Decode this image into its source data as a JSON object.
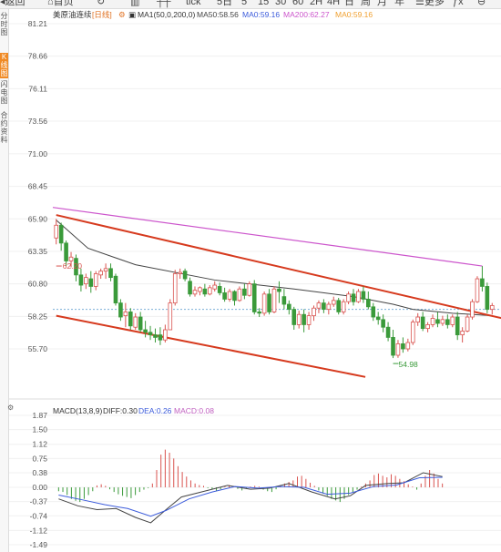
{
  "toolbar": {
    "items": [
      {
        "label": "返回",
        "icon": "back-arrow-icon"
      },
      {
        "label": "首页",
        "icon": "home-icon"
      },
      {
        "label": "",
        "icon": "refresh-icon"
      },
      {
        "label": "",
        "icon": "candlestick-icon"
      },
      {
        "label": "",
        "icon": "tick-bars-icon"
      },
      {
        "label": "tick"
      },
      {
        "label": "5日"
      },
      {
        "label": "5"
      },
      {
        "label": "15"
      },
      {
        "label": "30"
      },
      {
        "label": "60"
      },
      {
        "label": "2H"
      },
      {
        "label": "4H"
      },
      {
        "label": "日"
      },
      {
        "label": "周"
      },
      {
        "label": "月"
      },
      {
        "label": "年"
      },
      {
        "label": "更多",
        "icon": "menu-icon"
      },
      {
        "label": "",
        "icon": "function-icon"
      },
      {
        "label": "",
        "icon": "zoom-out-icon"
      }
    ]
  },
  "sidebar": {
    "items": [
      {
        "label": "分时图",
        "active": false
      },
      {
        "label": "K线图",
        "active": true
      },
      {
        "label": "闪电图",
        "active": false
      },
      {
        "label": "合约资料",
        "active": false
      }
    ]
  },
  "colors": {
    "up": "#d9534f",
    "down": "#3a9a3a",
    "ma1": "#333333",
    "ma50": "#444444",
    "ma200": "#cc55cc",
    "ma0": "#f0a030",
    "channel": "#d63a1e",
    "dif": "#444444",
    "dea": "#3b5bdb",
    "macd": "#c060c0",
    "price_guide": "#7aaed6"
  },
  "chart_data": [
    {
      "type": "candlestick",
      "title": "美原油连续",
      "period": "日线",
      "indicators": [
        {
          "name": "MA1(50,0,200,0)",
          "value": ""
        },
        {
          "name": "MA50",
          "value": "58.56"
        },
        {
          "name": "MA0",
          "value": "59.16"
        },
        {
          "name": "MA200",
          "value": "62.27"
        },
        {
          "name": "MA0",
          "value": "59.16"
        }
      ],
      "y_ticks": [
        "81.21",
        "78.66",
        "76.11",
        "73.56",
        "71.00",
        "68.45",
        "65.90",
        "63.35",
        "60.80",
        "58.25",
        "55.70"
      ],
      "ylim": [
        53.2,
        81.21
      ],
      "annotations": [
        {
          "text": "62.20",
          "value": 62.2
        },
        {
          "text": "54.98",
          "value": 54.98
        }
      ],
      "current_price": 58.8,
      "ma200": {
        "start": 66.8,
        "end": 62.2
      },
      "ma50": [
        [
          0,
          65.8
        ],
        [
          8,
          63.6
        ],
        [
          20,
          62.3
        ],
        [
          40,
          61.1
        ],
        [
          60,
          60.4
        ],
        [
          75,
          59.8
        ],
        [
          85,
          59.2
        ],
        [
          90,
          58.8
        ],
        [
          100,
          58.5
        ],
        [
          110,
          58.3
        ]
      ],
      "channel_upper": [
        [
          0,
          66.2
        ],
        [
          125,
          57.2
        ]
      ],
      "channel_lower": [
        [
          0,
          58.3
        ],
        [
          78,
          53.5
        ]
      ],
      "candles": [
        {
          "o": 64.4,
          "h": 65.9,
          "c": 65.4,
          "l": 63.9
        },
        {
          "o": 65.4,
          "h": 65.6,
          "c": 64.0,
          "l": 63.4
        },
        {
          "o": 64.0,
          "h": 64.2,
          "c": 62.6,
          "l": 62.2
        },
        {
          "o": 62.6,
          "h": 63.3,
          "c": 62.9,
          "l": 62.1
        },
        {
          "o": 62.8,
          "h": 63.1,
          "c": 61.5,
          "l": 61.0
        },
        {
          "o": 61.5,
          "h": 62.0,
          "c": 60.7,
          "l": 60.2
        },
        {
          "o": 60.8,
          "h": 61.6,
          "c": 61.3,
          "l": 60.4
        },
        {
          "o": 61.2,
          "h": 61.8,
          "c": 60.6,
          "l": 60.1
        },
        {
          "o": 60.6,
          "h": 61.8,
          "c": 61.6,
          "l": 60.3
        },
        {
          "o": 61.5,
          "h": 62.0,
          "c": 61.8,
          "l": 61.2
        },
        {
          "o": 61.8,
          "h": 62.4,
          "c": 62.0,
          "l": 61.2
        },
        {
          "o": 62.0,
          "h": 62.4,
          "c": 61.3,
          "l": 61.0
        },
        {
          "o": 61.4,
          "h": 61.6,
          "c": 59.3,
          "l": 59.1
        },
        {
          "o": 59.3,
          "h": 59.6,
          "c": 58.2,
          "l": 57.9
        },
        {
          "o": 58.3,
          "h": 59.3,
          "c": 58.6,
          "l": 57.4
        },
        {
          "o": 58.6,
          "h": 58.9,
          "c": 57.5,
          "l": 57.2
        },
        {
          "o": 57.4,
          "h": 58.5,
          "c": 58.2,
          "l": 57.2
        },
        {
          "o": 58.2,
          "h": 58.6,
          "c": 57.2,
          "l": 57.0
        },
        {
          "o": 57.2,
          "h": 57.9,
          "c": 57.0,
          "l": 56.6
        },
        {
          "o": 57.0,
          "h": 57.5,
          "c": 56.8,
          "l": 56.4
        },
        {
          "o": 56.8,
          "h": 57.3,
          "c": 56.6,
          "l": 56.2
        },
        {
          "o": 56.8,
          "h": 57.4,
          "c": 56.4,
          "l": 56.0
        },
        {
          "o": 56.4,
          "h": 57.6,
          "c": 57.2,
          "l": 56.2
        },
        {
          "o": 57.2,
          "h": 59.6,
          "c": 59.3,
          "l": 57.2
        },
        {
          "o": 59.3,
          "h": 61.9,
          "c": 61.6,
          "l": 59.1
        },
        {
          "o": 61.6,
          "h": 62.0,
          "c": 61.7,
          "l": 61.2
        },
        {
          "o": 61.8,
          "h": 62.0,
          "c": 61.2,
          "l": 61.0
        },
        {
          "o": 61.0,
          "h": 61.3,
          "c": 60.0,
          "l": 59.8
        },
        {
          "o": 60.0,
          "h": 60.6,
          "c": 60.3,
          "l": 59.8
        },
        {
          "o": 60.2,
          "h": 60.6,
          "c": 60.5,
          "l": 59.9
        },
        {
          "o": 60.4,
          "h": 60.8,
          "c": 60.0,
          "l": 59.8
        },
        {
          "o": 60.0,
          "h": 60.7,
          "c": 60.5,
          "l": 59.9
        },
        {
          "o": 60.4,
          "h": 61.0,
          "c": 60.7,
          "l": 60.2
        },
        {
          "o": 60.6,
          "h": 60.9,
          "c": 60.1,
          "l": 59.9
        },
        {
          "o": 60.1,
          "h": 60.5,
          "c": 59.6,
          "l": 59.4
        },
        {
          "o": 59.6,
          "h": 60.4,
          "c": 60.2,
          "l": 59.4
        },
        {
          "o": 60.2,
          "h": 60.3,
          "c": 59.5,
          "l": 59.1
        },
        {
          "o": 59.5,
          "h": 60.6,
          "c": 60.4,
          "l": 59.4
        },
        {
          "o": 60.4,
          "h": 60.8,
          "c": 59.9,
          "l": 59.6
        },
        {
          "o": 59.9,
          "h": 61.0,
          "c": 60.8,
          "l": 59.8
        },
        {
          "o": 60.8,
          "h": 61.1,
          "c": 58.6,
          "l": 58.4
        },
        {
          "o": 58.6,
          "h": 58.9,
          "c": 58.5,
          "l": 58.2
        },
        {
          "o": 58.5,
          "h": 60.2,
          "c": 60.0,
          "l": 58.3
        },
        {
          "o": 60.0,
          "h": 60.4,
          "c": 58.6,
          "l": 58.4
        },
        {
          "o": 58.6,
          "h": 60.6,
          "c": 60.4,
          "l": 58.5
        },
        {
          "o": 60.4,
          "h": 61.0,
          "c": 60.2,
          "l": 59.3
        },
        {
          "o": 59.8,
          "h": 60.4,
          "c": 59.2,
          "l": 58.8
        },
        {
          "o": 59.2,
          "h": 59.5,
          "c": 58.8,
          "l": 58.4
        },
        {
          "o": 58.8,
          "h": 59.0,
          "c": 57.6,
          "l": 57.2
        },
        {
          "o": 57.6,
          "h": 58.7,
          "c": 58.4,
          "l": 57.3
        },
        {
          "o": 58.4,
          "h": 58.8,
          "c": 57.6,
          "l": 57.0
        },
        {
          "o": 57.6,
          "h": 58.6,
          "c": 58.3,
          "l": 57.2
        },
        {
          "o": 58.3,
          "h": 59.1,
          "c": 58.9,
          "l": 57.9
        },
        {
          "o": 58.9,
          "h": 59.5,
          "c": 59.3,
          "l": 58.5
        },
        {
          "o": 59.3,
          "h": 59.6,
          "c": 58.8,
          "l": 58.5
        },
        {
          "o": 58.8,
          "h": 59.4,
          "c": 59.2,
          "l": 58.4
        },
        {
          "o": 59.2,
          "h": 59.8,
          "c": 59.5,
          "l": 59.0
        },
        {
          "o": 59.5,
          "h": 59.7,
          "c": 58.6,
          "l": 58.4
        },
        {
          "o": 58.6,
          "h": 59.6,
          "c": 59.4,
          "l": 58.4
        },
        {
          "o": 59.4,
          "h": 60.2,
          "c": 60.0,
          "l": 59.2
        },
        {
          "o": 60.0,
          "h": 60.4,
          "c": 59.4,
          "l": 59.1
        },
        {
          "o": 59.4,
          "h": 60.4,
          "c": 60.2,
          "l": 59.3
        },
        {
          "o": 60.2,
          "h": 60.6,
          "c": 59.6,
          "l": 59.3
        },
        {
          "o": 59.6,
          "h": 60.2,
          "c": 59.0,
          "l": 58.8
        },
        {
          "o": 59.0,
          "h": 59.3,
          "c": 58.2,
          "l": 57.9
        },
        {
          "o": 58.2,
          "h": 58.6,
          "c": 58.0,
          "l": 57.6
        },
        {
          "o": 58.0,
          "h": 58.4,
          "c": 57.4,
          "l": 57.0
        },
        {
          "o": 57.4,
          "h": 57.8,
          "c": 56.6,
          "l": 56.3
        },
        {
          "o": 56.6,
          "h": 57.2,
          "c": 55.2,
          "l": 54.98
        },
        {
          "o": 55.2,
          "h": 56.4,
          "c": 56.1,
          "l": 55.0
        },
        {
          "o": 56.1,
          "h": 56.6,
          "c": 55.7,
          "l": 55.4
        },
        {
          "o": 55.7,
          "h": 56.5,
          "c": 56.2,
          "l": 55.5
        },
        {
          "o": 56.2,
          "h": 58.0,
          "c": 57.8,
          "l": 56.0
        },
        {
          "o": 57.8,
          "h": 58.5,
          "c": 58.2,
          "l": 57.5
        },
        {
          "o": 58.2,
          "h": 58.6,
          "c": 57.3,
          "l": 57.1
        },
        {
          "o": 57.3,
          "h": 57.8,
          "c": 57.6,
          "l": 57.0
        },
        {
          "o": 57.6,
          "h": 58.4,
          "c": 58.1,
          "l": 57.4
        },
        {
          "o": 58.0,
          "h": 58.6,
          "c": 57.7,
          "l": 57.4
        },
        {
          "o": 57.7,
          "h": 58.3,
          "c": 58.0,
          "l": 57.5
        },
        {
          "o": 58.0,
          "h": 58.4,
          "c": 57.6,
          "l": 57.3
        },
        {
          "o": 57.6,
          "h": 58.4,
          "c": 58.2,
          "l": 57.4
        },
        {
          "o": 58.2,
          "h": 58.6,
          "c": 56.8,
          "l": 56.4
        },
        {
          "o": 56.8,
          "h": 57.4,
          "c": 57.1,
          "l": 56.2
        },
        {
          "o": 57.1,
          "h": 58.4,
          "c": 58.2,
          "l": 57.0
        },
        {
          "o": 58.2,
          "h": 59.6,
          "c": 59.4,
          "l": 58.0
        },
        {
          "o": 59.4,
          "h": 61.4,
          "c": 61.2,
          "l": 59.3
        },
        {
          "o": 61.2,
          "h": 62.2,
          "c": 60.6,
          "l": 60.2
        },
        {
          "o": 60.6,
          "h": 60.9,
          "c": 58.8,
          "l": 58.5
        },
        {
          "o": 58.8,
          "h": 59.3,
          "c": 59.1,
          "l": 58.4
        }
      ]
    },
    {
      "type": "bar",
      "title": "MACD(13,8,9)",
      "indicators": [
        {
          "name": "DIFF",
          "value": "0.30"
        },
        {
          "name": "DEA",
          "value": "0.26"
        },
        {
          "name": "MACD",
          "value": "0.08"
        }
      ],
      "y_ticks": [
        "1.87",
        "1.50",
        "1.12",
        "0.75",
        "0.38",
        "0.00",
        "-0.37",
        "-0.74",
        "-1.12",
        "-1.49"
      ],
      "ylim": [
        -1.49,
        1.87
      ],
      "macd_bars": [
        -0.1,
        -0.12,
        -0.2,
        -0.3,
        -0.35,
        -0.38,
        -0.3,
        -0.2,
        -0.1,
        0.05,
        0.08,
        0.04,
        -0.05,
        -0.12,
        -0.18,
        -0.22,
        -0.25,
        -0.28,
        -0.2,
        -0.12,
        -0.06,
        -0.02,
        0.1,
        0.45,
        0.85,
        0.98,
        0.9,
        0.75,
        0.55,
        0.4,
        0.28,
        0.18,
        0.1,
        0.06,
        0.04,
        -0.02,
        -0.06,
        -0.1,
        -0.05,
        0.02,
        0.06,
        0.03,
        -0.04,
        -0.08,
        -0.04,
        0.02,
        0.04,
        0.02,
        -0.06,
        -0.1,
        -0.12,
        -0.05,
        0.04,
        0.1,
        0.14,
        0.18,
        0.28,
        0.3,
        0.22,
        0.12,
        0.04,
        -0.08,
        -0.16,
        -0.22,
        -0.3,
        -0.34,
        -0.38,
        -0.3,
        -0.2,
        -0.12,
        -0.06,
        0.02,
        0.1,
        0.18,
        0.32,
        0.36,
        0.3,
        0.26,
        0.34,
        0.3,
        0.22,
        0.16,
        0.08,
        0.02,
        -0.06,
        0.1,
        0.3,
        0.45,
        0.36,
        0.22,
        0.1
      ],
      "dif": [
        [
          0,
          -0.3
        ],
        [
          5,
          -0.48
        ],
        [
          10,
          -0.58
        ],
        [
          15,
          -0.55
        ],
        [
          20,
          -0.78
        ],
        [
          24,
          -0.92
        ],
        [
          28,
          -0.58
        ],
        [
          32,
          -0.25
        ],
        [
          38,
          -0.1
        ],
        [
          44,
          0.05
        ],
        [
          50,
          -0.05
        ],
        [
          55,
          -0.02
        ],
        [
          60,
          0.1
        ],
        [
          66,
          -0.12
        ],
        [
          72,
          -0.3
        ],
        [
          76,
          -0.22
        ],
        [
          80,
          0.05
        ],
        [
          86,
          0.1
        ],
        [
          90,
          0.12
        ],
        [
          95,
          0.38
        ],
        [
          100,
          0.28
        ]
      ],
      "dea": [
        [
          0,
          -0.2
        ],
        [
          6,
          -0.32
        ],
        [
          12,
          -0.45
        ],
        [
          18,
          -0.55
        ],
        [
          24,
          -0.75
        ],
        [
          28,
          -0.6
        ],
        [
          34,
          -0.3
        ],
        [
          40,
          -0.12
        ],
        [
          46,
          0.02
        ],
        [
          52,
          -0.02
        ],
        [
          58,
          0.02
        ],
        [
          64,
          0.0
        ],
        [
          70,
          -0.18
        ],
        [
          76,
          -0.15
        ],
        [
          82,
          0.02
        ],
        [
          88,
          0.06
        ],
        [
          94,
          0.25
        ],
        [
          100,
          0.26
        ]
      ]
    }
  ]
}
